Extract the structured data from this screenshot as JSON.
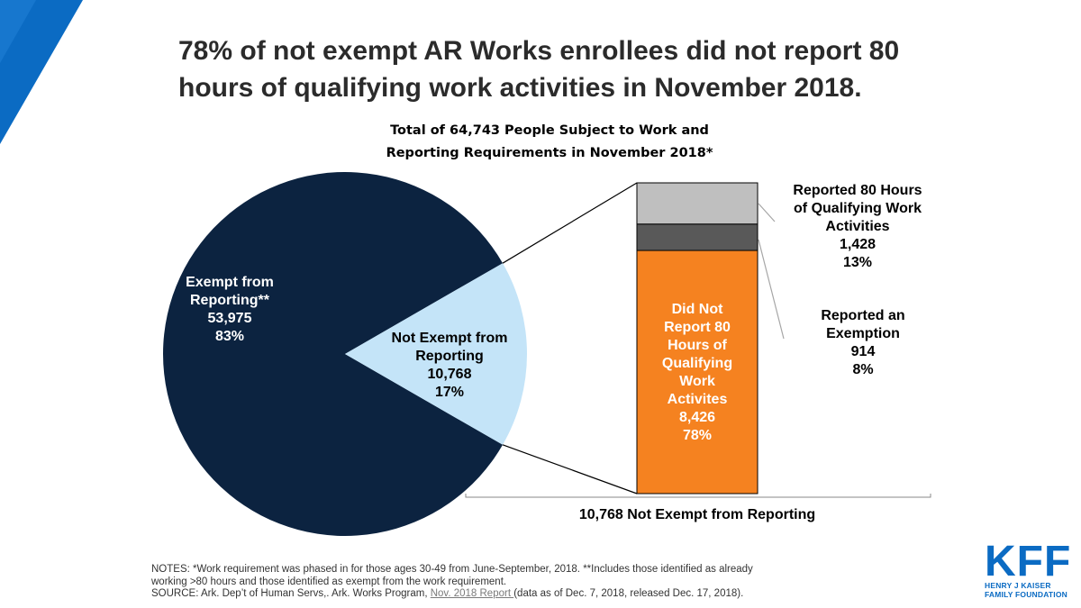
{
  "headline": {
    "line1": "78% of not exempt AR Works enrollees did not report 80",
    "line2": "hours of qualifying work activities in November 2018."
  },
  "chart_data": {
    "type": "pie-with-stacked-bar",
    "title_line1": "Total of 64,743 People Subject to Work and",
    "title_line2": "Reporting Requirements in November 2018*",
    "pie": [
      {
        "name": "Exempt from Reporting**",
        "label_line1": "Exempt from",
        "label_line2": "Reporting**",
        "value": 53975,
        "value_label": "53,975",
        "pct_label": "83%",
        "color": "#0c2340"
      },
      {
        "name": "Not Exempt from Reporting",
        "label_line1": "Not Exempt from",
        "label_line2": "Reporting",
        "value": 10768,
        "value_label": "10,768",
        "pct_label": "17%",
        "color": "#c4e4f8"
      }
    ],
    "bar": {
      "total": 10768,
      "label": "10,768 Not Exempt from Reporting",
      "segments": [
        {
          "name": "Did Not Report 80 Hours of Qualifying Work Activites",
          "label_lines": [
            "Did Not",
            "Report 80",
            "Hours of",
            "Qualifying",
            "Work",
            "Activites"
          ],
          "value": 8426,
          "value_label": "8,426",
          "pct_label": "78%",
          "color": "#f58220"
        },
        {
          "name": "Reported an Exemption",
          "label_lines": [
            "Reported an",
            "Exemption"
          ],
          "value": 914,
          "value_label": "914",
          "pct_label": "8%",
          "color": "#595959"
        },
        {
          "name": "Reported 80 Hours of Qualifying Work Activities",
          "label_lines": [
            "Reported 80 Hours",
            "of Qualifying Work",
            "Activities"
          ],
          "value": 1428,
          "value_label": "1,428",
          "pct_label": "13%",
          "color": "#bfbfbf"
        }
      ]
    }
  },
  "notes": {
    "line1": "NOTES:  *Work requirement was phased in for those ages 30-49 from June-September, 2018.  **Includes those identified as already",
    "line2": "working >80 hours and those identified as exempt from the work requirement.",
    "line3_prefix": "SOURCE:   Ark. Dep’t of Human Servs,. Ark. Works Program, ",
    "line3_link": "Nov. 2018 Report ",
    "line3_suffix": "(data as of Dec. 7, 2018, released Dec. 17, 2018)."
  },
  "logo": {
    "mark": "KFF",
    "line1": "HENRY J KAISER",
    "line2": "FAMILY FOUNDATION"
  },
  "colors": {
    "accent": "#0b6bc3",
    "navy": "#0c2340",
    "light_blue": "#c4e4f8",
    "orange": "#f58220"
  }
}
